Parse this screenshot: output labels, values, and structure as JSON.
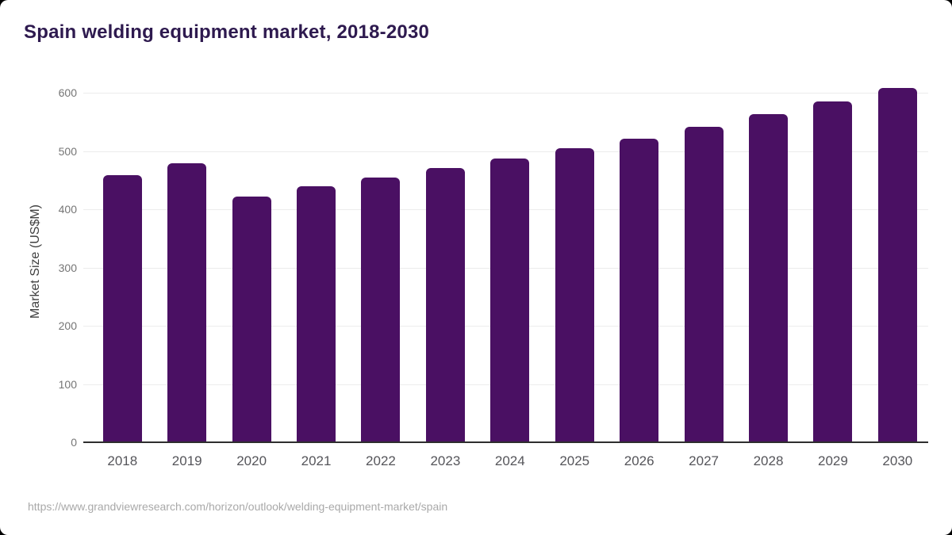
{
  "window": {
    "background_color": "#000000",
    "card_color": "#ffffff"
  },
  "header": {
    "title": "Spain welding equipment market, 2018-2030"
  },
  "chart_data": {
    "type": "bar",
    "title": "Spain welding equipment market, 2018-2030",
    "categories": [
      "2018",
      "2019",
      "2020",
      "2021",
      "2022",
      "2023",
      "2024",
      "2025",
      "2026",
      "2027",
      "2028",
      "2029",
      "2030"
    ],
    "values": [
      459,
      479,
      422,
      440,
      455,
      471,
      487,
      505,
      522,
      542,
      563,
      585,
      609
    ],
    "xlabel": "",
    "ylabel": "Market Size (US$M)",
    "ylim": [
      0,
      600
    ],
    "yticks": [
      0,
      100,
      200,
      300,
      400,
      500,
      600
    ],
    "grid": "horizontal",
    "legend": "none",
    "bar_color": "#4a1063"
  },
  "footer": {
    "source_url": "https://www.grandviewresearch.com/horizon/outlook/welding-equipment-market/spain"
  },
  "colors": {
    "title": "#2e1a4f",
    "bar": "#4a1063",
    "gridline": "#ececec",
    "axis_line": "#2e2e2e",
    "y_tick_label": "#757575",
    "x_tick_label": "#55555a",
    "y_axis_title": "#3f3f3f",
    "source_text": "#a9a9a9"
  }
}
